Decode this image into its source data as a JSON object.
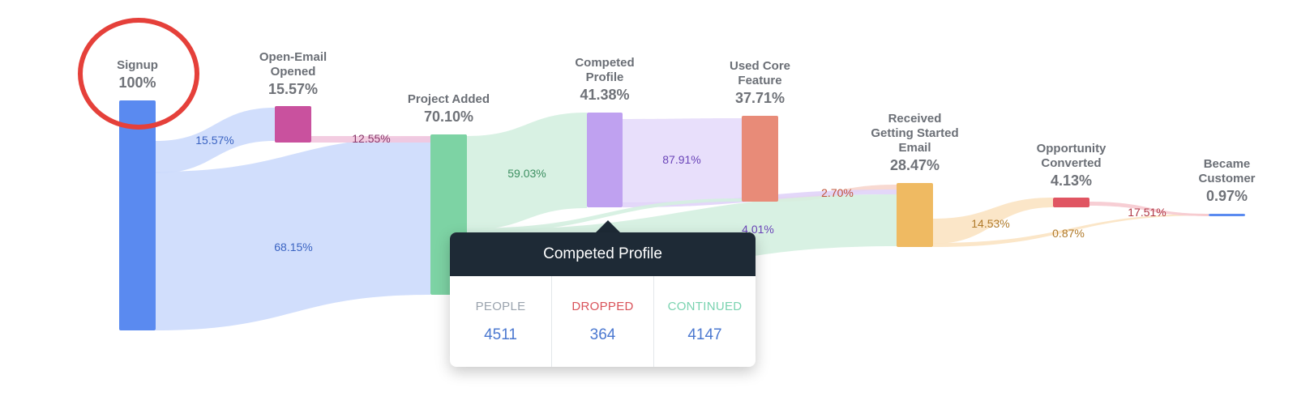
{
  "nodes": [
    {
      "id": "signup",
      "name": "Signup",
      "pct": "100%",
      "color": "#5a8af0"
    },
    {
      "id": "open-email",
      "name": "Open-Email Opened",
      "pct": "15.57%",
      "color": "#c9519e"
    },
    {
      "id": "project-added",
      "name": "Project Added",
      "pct": "70.10%",
      "color": "#7dd3a4"
    },
    {
      "id": "competed-profile",
      "name": "Competed Profile",
      "pct": "41.38%",
      "color": "#bfa1f0"
    },
    {
      "id": "used-core",
      "name": "Used Core Feature",
      "pct": "37.71%",
      "color": "#e88b78"
    },
    {
      "id": "received-email",
      "name": "Received Getting Started Email",
      "pct": "28.47%",
      "color": "#efba62"
    },
    {
      "id": "opportunity",
      "name": "Opportunity Converted",
      "pct": "4.13%",
      "color": "#e05562"
    },
    {
      "id": "became-customer",
      "name": "Became Customer",
      "pct": "0.97%",
      "color": "#5a8af0"
    }
  ],
  "flows": [
    {
      "from": "signup",
      "to": "open-email",
      "label": "15.57%",
      "color": "#ccdafc",
      "text_color": "#3a63c2"
    },
    {
      "from": "signup",
      "to": "project-added",
      "label": "68.15%",
      "color": "#ccdafc",
      "text_color": "#3a63c2"
    },
    {
      "from": "open-email",
      "to": "project-added",
      "label": "12.55%",
      "color": "#f2c6de",
      "text_color": "#8a3a6c"
    },
    {
      "from": "project-added",
      "to": "competed-profile",
      "label": "59.03%",
      "color": "#d4f0e0",
      "text_color": "#3c8f61"
    },
    {
      "from": "competed-profile",
      "to": "used-core",
      "label": "87.91%",
      "color": "#e6dcfb",
      "text_color": "#6a44b8"
    },
    {
      "from": "used-core",
      "to": "received-email",
      "label": "2.70%",
      "color": "#f7d5cc",
      "text_color": "#c0533a"
    },
    {
      "from": "competed-profile",
      "to": "received-email",
      "label": "4.01%",
      "color": "#e0d3f8",
      "text_color": "#6a44b8"
    },
    {
      "from": "project-added",
      "to": "received-email",
      "label": "",
      "color": "#d4f0e0",
      "text_color": "#3c8f61"
    },
    {
      "from": "project-added",
      "to": "used-core",
      "label": "",
      "color": "#d4f0e0",
      "text_color": "#3c8f61"
    },
    {
      "from": "received-email",
      "to": "opportunity",
      "label": "14.53%",
      "color": "#fbe3c2",
      "text_color": "#b07a2a"
    },
    {
      "from": "received-email",
      "to": "became-customer",
      "label": "0.87%",
      "color": "#fbe3c2",
      "text_color": "#b07a2a"
    },
    {
      "from": "opportunity",
      "to": "became-customer",
      "label": "17.51%",
      "color": "#f6c9cf",
      "text_color": "#b03a48"
    }
  ],
  "highlight": {
    "target": "signup",
    "color": "#e5403a"
  },
  "tooltip": {
    "title": "Competed Profile",
    "columns": [
      {
        "label": "PEOPLE",
        "value": "4511",
        "color": "#9aa3ad"
      },
      {
        "label": "DROPPED",
        "value": "364",
        "color": "#d9535a"
      },
      {
        "label": "CONTINUED",
        "value": "4147",
        "color": "#7ad3b0"
      }
    ]
  }
}
